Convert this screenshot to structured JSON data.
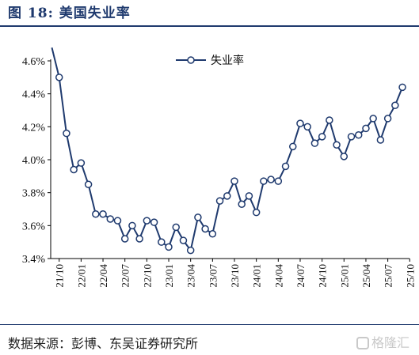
{
  "figure": {
    "title": "图 18:  美国失业率",
    "source": "数据来源：彭博、东吴证券研究所",
    "watermark": "格隆汇"
  },
  "chart_data": {
    "type": "line",
    "title": "",
    "xlabel": "",
    "ylabel": "",
    "ylim": [
      0.034,
      0.046
    ],
    "y_ticks": [
      "3.4%",
      "3.6%",
      "3.8%",
      "4.0%",
      "4.2%",
      "4.4%",
      "4.6%"
    ],
    "y_tick_values": [
      0.034,
      0.036,
      0.038,
      0.04,
      0.042,
      0.044,
      0.046
    ],
    "x_tick_labels": [
      "21/10",
      "22/01",
      "22/04",
      "22/07",
      "22/10",
      "23/01",
      "23/04",
      "23/07",
      "23/10",
      "24/01",
      "24/04",
      "24/07",
      "24/10",
      "25/01",
      "25/04",
      "25/07",
      "25/10"
    ],
    "legend": "top-center",
    "grid": false,
    "categories": [
      "21/09",
      "21/10",
      "21/11",
      "21/12",
      "22/01",
      "22/02",
      "22/03",
      "22/04",
      "22/05",
      "22/06",
      "22/07",
      "22/08",
      "22/09",
      "22/10",
      "22/11",
      "22/12",
      "23/01",
      "23/02",
      "23/03",
      "23/04",
      "23/05",
      "23/06",
      "23/07",
      "23/08",
      "23/09",
      "23/10",
      "23/11",
      "23/12",
      "24/01",
      "24/02",
      "24/03",
      "24/04",
      "24/05",
      "24/06",
      "24/07",
      "24/08",
      "24/09",
      "24/10",
      "24/11",
      "24/12",
      "25/01",
      "25/02",
      "25/03",
      "25/04",
      "25/05",
      "25/06",
      "25/07",
      "25/08",
      "25/09"
    ],
    "series": [
      {
        "name": "失业率",
        "color": "#1f3a6e",
        "marker": "hollow-circle",
        "values": [
          0.0468,
          0.045,
          0.0416,
          0.0394,
          0.0398,
          0.0385,
          0.0367,
          0.0367,
          0.0364,
          0.0363,
          0.0352,
          0.036,
          0.0352,
          0.0363,
          0.0362,
          0.035,
          0.0347,
          0.0359,
          0.0351,
          0.0345,
          0.0365,
          0.0358,
          0.0355,
          0.0375,
          0.0378,
          0.0387,
          0.0373,
          0.0378,
          0.0368,
          0.0387,
          0.0388,
          0.0387,
          0.0396,
          0.0408,
          0.0422,
          0.042,
          0.041,
          0.0414,
          0.0424,
          0.0409,
          0.0402,
          0.0414,
          0.0415,
          0.0419,
          0.0425,
          0.0412,
          0.0425,
          0.0433,
          0.0444
        ]
      }
    ]
  }
}
